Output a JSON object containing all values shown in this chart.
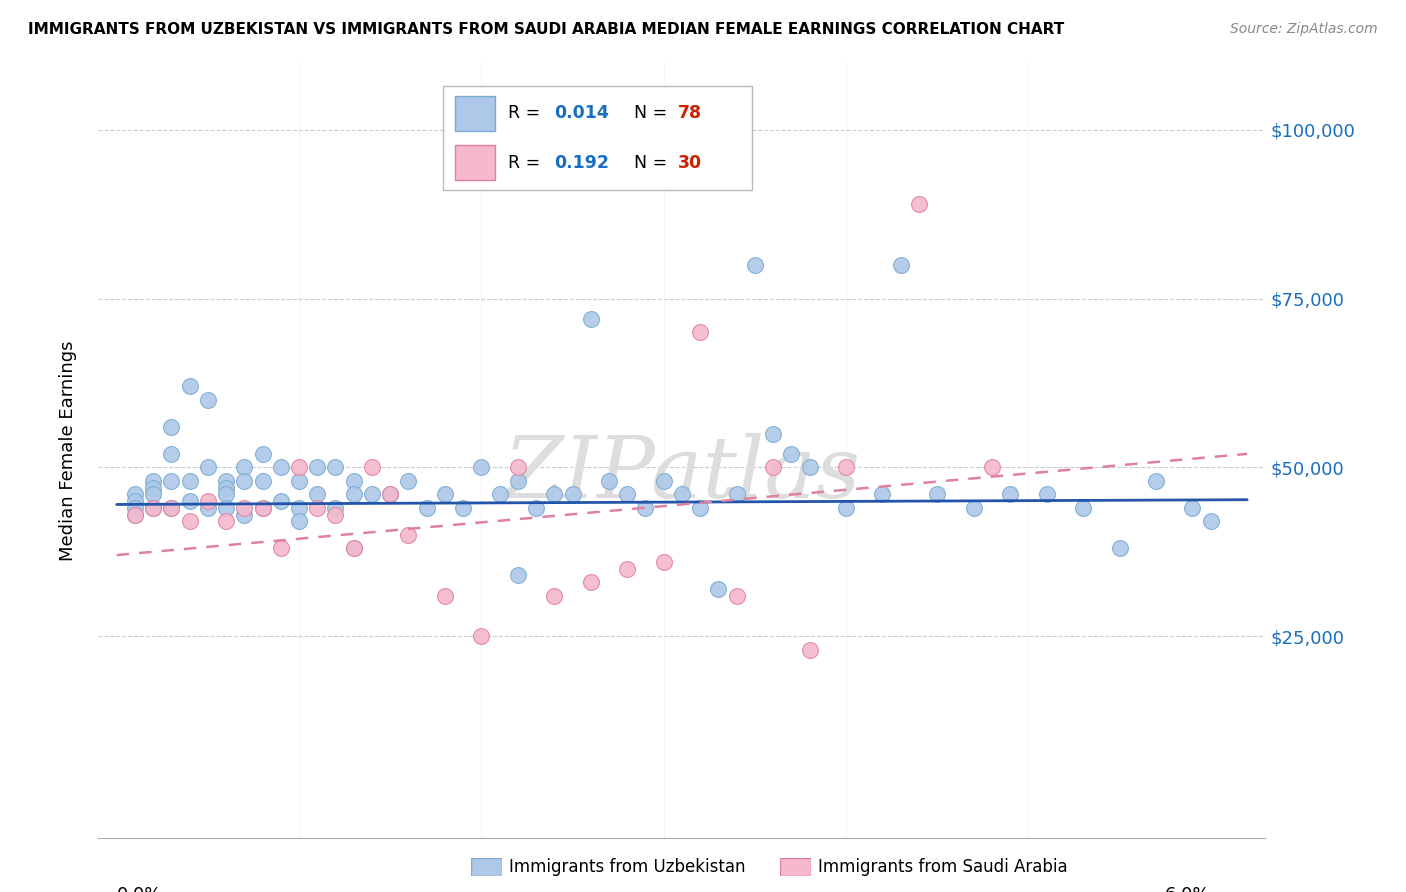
{
  "title": "IMMIGRANTS FROM UZBEKISTAN VS IMMIGRANTS FROM SAUDI ARABIA MEDIAN FEMALE EARNINGS CORRELATION CHART",
  "source": "Source: ZipAtlas.com",
  "ylabel": "Median Female Earnings",
  "uzbekistan_color": "#adc8e8",
  "uzbekistan_edge": "#7aaad0",
  "saudi_color": "#f5b8cc",
  "saudi_edge": "#e080a0",
  "line_uzbekistan_color": "#2255aa",
  "line_saudi_color": "#e080a0",
  "r_value_color": "#1a6ec0",
  "n_value_color": "#cc2200",
  "watermark_color": "#dddddd",
  "grid_color": "#cccccc",
  "right_label_color": "#1a6ec0",
  "legend_border_color": "#bbbbbb",
  "uzbekistan_x": [
    0.001,
    0.001,
    0.001,
    0.001,
    0.002,
    0.002,
    0.002,
    0.002,
    0.003,
    0.003,
    0.003,
    0.003,
    0.004,
    0.004,
    0.004,
    0.005,
    0.005,
    0.005,
    0.006,
    0.006,
    0.006,
    0.006,
    0.007,
    0.007,
    0.007,
    0.008,
    0.008,
    0.008,
    0.009,
    0.009,
    0.01,
    0.01,
    0.01,
    0.011,
    0.011,
    0.012,
    0.012,
    0.013,
    0.013,
    0.014,
    0.015,
    0.016,
    0.017,
    0.018,
    0.019,
    0.02,
    0.021,
    0.022,
    0.023,
    0.024,
    0.025,
    0.026,
    0.027,
    0.028,
    0.029,
    0.03,
    0.031,
    0.032,
    0.033,
    0.034,
    0.035,
    0.036,
    0.037,
    0.038,
    0.04,
    0.042,
    0.043,
    0.045,
    0.047,
    0.049,
    0.051,
    0.053,
    0.055,
    0.057,
    0.059,
    0.06,
    0.013,
    0.022
  ],
  "uzbekistan_y": [
    46000,
    45000,
    44000,
    43000,
    48000,
    47000,
    46000,
    44000,
    56000,
    52000,
    48000,
    44000,
    62000,
    48000,
    45000,
    60000,
    50000,
    44000,
    48000,
    47000,
    46000,
    44000,
    50000,
    48000,
    43000,
    52000,
    48000,
    44000,
    50000,
    45000,
    48000,
    44000,
    42000,
    50000,
    46000,
    50000,
    44000,
    48000,
    38000,
    46000,
    46000,
    48000,
    44000,
    46000,
    44000,
    50000,
    46000,
    48000,
    44000,
    46000,
    46000,
    72000,
    48000,
    46000,
    44000,
    48000,
    46000,
    44000,
    32000,
    46000,
    80000,
    55000,
    52000,
    50000,
    44000,
    46000,
    80000,
    46000,
    44000,
    46000,
    46000,
    44000,
    38000,
    48000,
    44000,
    42000,
    46000,
    34000
  ],
  "saudi_x": [
    0.001,
    0.002,
    0.003,
    0.004,
    0.005,
    0.006,
    0.007,
    0.008,
    0.009,
    0.01,
    0.011,
    0.012,
    0.013,
    0.014,
    0.015,
    0.016,
    0.018,
    0.02,
    0.022,
    0.024,
    0.026,
    0.028,
    0.03,
    0.032,
    0.034,
    0.036,
    0.038,
    0.04,
    0.044,
    0.048
  ],
  "saudi_y": [
    43000,
    44000,
    44000,
    42000,
    45000,
    42000,
    44000,
    44000,
    38000,
    50000,
    44000,
    43000,
    38000,
    50000,
    46000,
    40000,
    31000,
    25000,
    50000,
    31000,
    33000,
    35000,
    36000,
    70000,
    31000,
    50000,
    23000,
    50000,
    89000,
    50000
  ],
  "uz_line_x": [
    0.0,
    0.062
  ],
  "uz_line_y": [
    44500,
    45200
  ],
  "sa_line_x": [
    0.0,
    0.062
  ],
  "sa_line_y": [
    37000,
    52000
  ],
  "xlim": [
    -0.001,
    0.063
  ],
  "ylim": [
    -5000,
    110000
  ],
  "ytick_vals": [
    0,
    25000,
    50000,
    75000,
    100000
  ],
  "ytick_labels_right": [
    "",
    "$25,000",
    "$50,000",
    "$75,000",
    "$100,000"
  ]
}
